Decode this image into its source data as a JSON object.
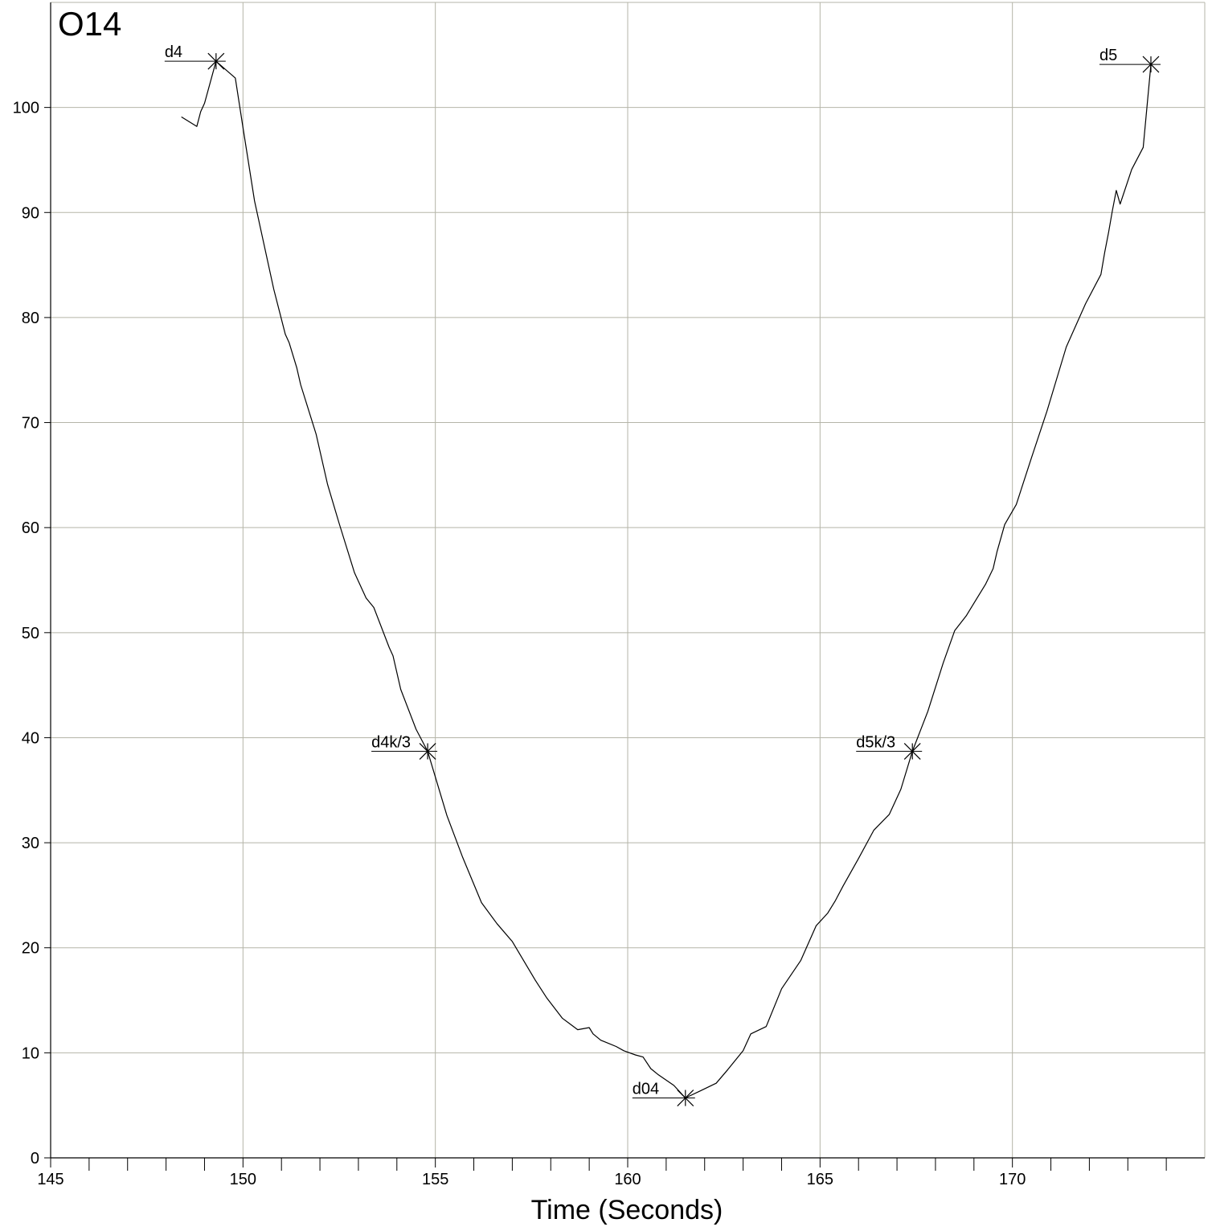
{
  "chart_data": {
    "type": "line",
    "title": "O14",
    "xlabel": "Time (Seconds)",
    "ylabel": "",
    "xlim": [
      145,
      175
    ],
    "ylim": [
      0,
      110
    ],
    "xticks": [
      145,
      150,
      155,
      160,
      165,
      170
    ],
    "yticks": [
      0,
      10,
      20,
      30,
      40,
      50,
      60,
      70,
      80,
      90,
      100
    ],
    "grid": true,
    "colors": {
      "line": "#000000",
      "grid": "#b5b5a8",
      "axis": "#000000"
    },
    "series": [
      {
        "x": [
          148.4,
          148.8,
          148.9,
          149.0,
          149.3,
          149.8,
          150.0,
          150.3,
          150.8,
          151.1,
          151.2,
          151.4,
          151.5,
          151.9,
          152.2,
          152.5,
          152.9,
          153.2,
          153.4,
          153.8,
          153.9,
          154.1,
          154.5,
          154.8,
          155.3,
          155.7,
          156.2,
          156.6,
          157.0,
          157.6,
          157.9,
          158.3,
          158.7,
          159.0,
          159.1,
          159.3,
          159.7,
          159.9,
          160.2,
          160.4,
          160.6,
          160.8,
          161.2,
          161.5,
          161.9,
          162.3,
          162.6,
          163.0,
          163.2,
          163.6,
          164.0,
          164.5,
          164.9,
          165.2,
          165.4,
          165.6,
          166.0,
          166.4,
          166.8,
          166.9,
          167.1,
          167.4,
          167.8,
          168.2,
          168.5,
          168.8,
          169.0,
          169.3,
          169.5,
          169.6,
          169.8,
          170.1,
          170.5,
          170.9,
          171.4,
          171.9,
          172.3,
          172.4,
          172.5,
          172.6,
          172.7,
          172.8,
          173.1,
          173.4,
          173.6
        ],
        "y": [
          99.1,
          98.2,
          99.6,
          100.4,
          104.4,
          102.8,
          98.1,
          91.1,
          82.7,
          78.4,
          77.6,
          75.2,
          73.6,
          68.9,
          64.1,
          60.4,
          55.7,
          53.3,
          52.4,
          48.6,
          47.8,
          44.6,
          40.8,
          38.7,
          32.6,
          28.7,
          24.3,
          22.3,
          20.6,
          16.9,
          15.2,
          13.3,
          12.2,
          12.4,
          11.8,
          11.2,
          10.6,
          10.2,
          9.8,
          9.6,
          8.5,
          7.9,
          6.9,
          5.7,
          6.4,
          7.1,
          8.4,
          10.2,
          11.8,
          12.5,
          16.1,
          18.8,
          22.1,
          23.3,
          24.5,
          25.9,
          28.5,
          31.2,
          32.7,
          33.5,
          35.1,
          38.7,
          42.5,
          47.1,
          50.2,
          51.6,
          52.8,
          54.6,
          56.1,
          57.7,
          60.3,
          62.2,
          66.7,
          71.1,
          77.2,
          81.3,
          84.1,
          86.2,
          88.1,
          90.2,
          92.1,
          90.8,
          94.1,
          96.2,
          104.1
        ]
      }
    ],
    "markers": [
      {
        "label": "d4",
        "x": 149.3,
        "y": 104.4
      },
      {
        "label": "d4k/3",
        "x": 154.8,
        "y": 38.7
      },
      {
        "label": "d04",
        "x": 161.5,
        "y": 5.7
      },
      {
        "label": "d5k/3",
        "x": 167.4,
        "y": 38.7
      },
      {
        "label": "d5",
        "x": 173.6,
        "y": 104.1
      }
    ]
  }
}
